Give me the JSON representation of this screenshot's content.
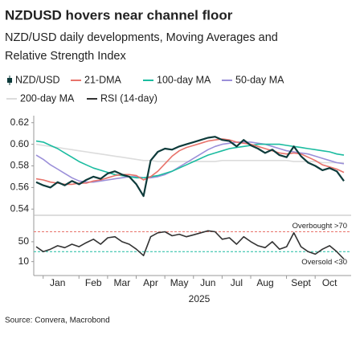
{
  "source": "Source: Convera, Macrobond",
  "chart_data": [
    {
      "type": "line",
      "title": "NZDUSD hovers near channel floor",
      "subtitle": [
        "NZD/USD daily developments, Moving Averages and",
        "Relative Strength Index"
      ],
      "categories": [
        null,
        null,
        null,
        "Jan",
        null,
        null,
        null,
        null,
        "Feb",
        null,
        null,
        null,
        "Mar",
        null,
        null,
        null,
        "Apr",
        null,
        null,
        null,
        "May",
        null,
        null,
        null,
        "Jun",
        null,
        null,
        null,
        "Jul",
        null,
        null,
        null,
        "Aug",
        null,
        null,
        null,
        null,
        "Sept",
        null,
        null,
        null,
        "Oct",
        null,
        null
      ],
      "ylim": [
        0.535,
        0.625
      ],
      "yticks": [
        0.54,
        0.56,
        0.58,
        {
          "value": 0.6,
          "label": "0.60"
        },
        0.62
      ],
      "series": [
        {
          "name": "NZD/USD",
          "color": "#0e3b3b",
          "values": [
            0.565,
            0.562,
            0.56,
            0.565,
            0.562,
            0.566,
            0.563,
            0.567,
            0.57,
            0.568,
            0.573,
            0.575,
            0.572,
            0.57,
            0.563,
            0.552,
            0.585,
            0.593,
            0.596,
            0.595,
            0.598,
            0.6,
            0.602,
            0.604,
            0.606,
            0.607,
            0.604,
            0.603,
            0.598,
            0.604,
            0.599,
            0.596,
            0.592,
            0.595,
            0.59,
            0.588,
            0.598,
            0.589,
            0.583,
            0.58,
            0.576,
            0.578,
            0.575,
            0.566
          ]
        },
        {
          "name": "21-DMA",
          "color": "#e8736b",
          "values": [
            0.568,
            0.567,
            0.565,
            0.564,
            0.563,
            0.563,
            0.564,
            0.564,
            0.566,
            0.567,
            0.569,
            0.571,
            0.572,
            0.572,
            0.571,
            0.567,
            0.57,
            0.575,
            0.582,
            0.589,
            0.594,
            0.597,
            0.599,
            0.601,
            0.603,
            0.604,
            0.605,
            0.604,
            0.602,
            0.601,
            0.6,
            0.598,
            0.596,
            0.594,
            0.592,
            0.591,
            0.592,
            0.591,
            0.588,
            0.585,
            0.581,
            0.579,
            0.577,
            0.574
          ]
        },
        {
          "name": "100-day MA",
          "color": "#1bbca0",
          "values": [
            0.603,
            0.602,
            0.599,
            0.596,
            0.592,
            0.588,
            0.584,
            0.581,
            0.578,
            0.576,
            0.574,
            0.572,
            0.571,
            0.57,
            0.569,
            0.569,
            0.57,
            0.571,
            0.573,
            0.575,
            0.578,
            0.581,
            0.584,
            0.587,
            0.59,
            0.592,
            0.594,
            0.596,
            0.597,
            0.598,
            0.599,
            0.6,
            0.6,
            0.6,
            0.6,
            0.599,
            0.598,
            0.597,
            0.596,
            0.595,
            0.594,
            0.593,
            0.591,
            0.59
          ]
        },
        {
          "name": "50-day MA",
          "color": "#9b8fd9",
          "values": [
            0.59,
            0.586,
            0.581,
            0.577,
            0.573,
            0.569,
            0.566,
            0.565,
            0.565,
            0.566,
            0.567,
            0.568,
            0.569,
            0.57,
            0.57,
            0.569,
            0.569,
            0.57,
            0.572,
            0.575,
            0.579,
            0.583,
            0.587,
            0.591,
            0.595,
            0.598,
            0.6,
            0.601,
            0.602,
            0.602,
            0.602,
            0.601,
            0.6,
            0.598,
            0.596,
            0.594,
            0.593,
            0.592,
            0.591,
            0.589,
            0.587,
            0.585,
            0.583,
            0.582
          ]
        },
        {
          "name": "200-day MA",
          "color": "#dcdcdc",
          "values": [
            0.6,
            0.599,
            0.598,
            0.597,
            0.596,
            0.595,
            0.594,
            0.593,
            0.592,
            0.591,
            0.59,
            0.589,
            0.588,
            0.587,
            0.586,
            0.585,
            0.585,
            0.584,
            0.584,
            0.584,
            0.584,
            0.584,
            0.584,
            0.584,
            0.584,
            0.584,
            0.585,
            0.585,
            0.585,
            0.585,
            0.585,
            0.585,
            0.585,
            0.585,
            0.585,
            0.585,
            0.584,
            0.584,
            0.584,
            0.584,
            0.583,
            0.583,
            0.583,
            0.583
          ]
        }
      ]
    },
    {
      "type": "line",
      "xlabel": "2025",
      "ylim": [
        -10,
        100
      ],
      "yticks": [
        10,
        50
      ],
      "levels": [
        {
          "value": 70,
          "label": "Overbought >70",
          "color": "#e8736b"
        },
        {
          "value": 30,
          "label": "Oversold <30",
          "color": "#1bbca0"
        }
      ],
      "series": [
        {
          "name": "RSI (14-day)",
          "color": "#333333",
          "values": [
            40,
            30,
            35,
            42,
            38,
            45,
            40,
            48,
            55,
            45,
            58,
            60,
            50,
            45,
            35,
            22,
            60,
            68,
            70,
            62,
            65,
            60,
            64,
            68,
            72,
            70,
            55,
            58,
            45,
            60,
            50,
            42,
            38,
            50,
            35,
            40,
            68,
            40,
            30,
            25,
            35,
            42,
            30,
            15
          ]
        }
      ]
    }
  ]
}
